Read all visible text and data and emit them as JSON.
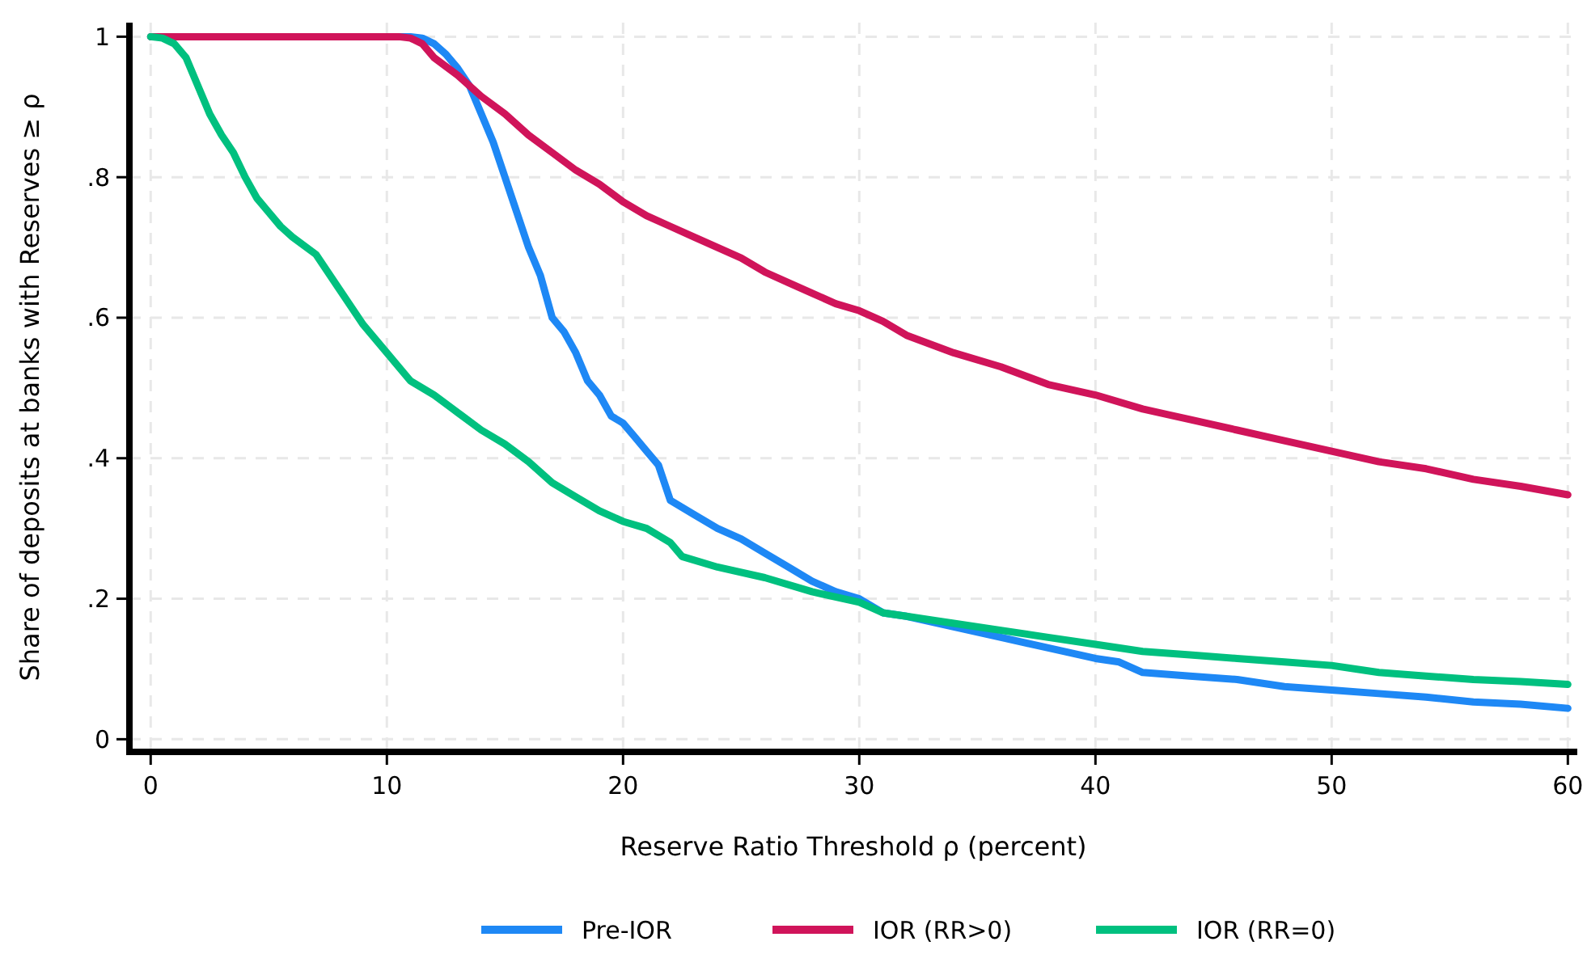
{
  "chart_data": {
    "type": "line",
    "xlabel": "Reserve Ratio Threshold ρ (percent)",
    "ylabel": "Share of deposits at banks with Reserves ≥ ρ",
    "xlim": [
      -0.9,
      60.4
    ],
    "ylim": [
      -0.018,
      1.02
    ],
    "xticks": [
      0,
      10,
      20,
      30,
      40,
      50,
      60
    ],
    "yticks": [
      {
        "value": 0,
        "label": "0"
      },
      {
        "value": 0.2,
        "label": ".2"
      },
      {
        "value": 0.4,
        "label": ".4"
      },
      {
        "value": 0.6,
        "label": ".6"
      },
      {
        "value": 0.8,
        "label": ".8"
      },
      {
        "value": 1,
        "label": "1"
      }
    ],
    "grid": true,
    "legend": "bottom",
    "line_style": "solid",
    "marker": "none",
    "series": [
      {
        "name": "Pre-IOR",
        "color": "#1e88f5",
        "x": [
          0,
          11,
          11.5,
          12,
          12.5,
          13,
          13.5,
          14,
          14.5,
          15,
          15.5,
          16,
          16.5,
          17,
          17.5,
          18,
          18.5,
          19,
          19.5,
          20,
          20.5,
          21,
          21.5,
          22,
          23,
          24,
          25,
          26,
          27,
          28,
          29,
          30,
          31,
          32,
          34,
          36,
          38,
          40,
          41,
          42,
          44,
          46,
          48,
          50,
          52,
          54,
          56,
          58,
          60
        ],
        "values": [
          1,
          1,
          0.998,
          0.99,
          0.975,
          0.955,
          0.93,
          0.89,
          0.85,
          0.8,
          0.75,
          0.7,
          0.66,
          0.6,
          0.58,
          0.55,
          0.51,
          0.49,
          0.46,
          0.45,
          0.43,
          0.41,
          0.39,
          0.34,
          0.32,
          0.3,
          0.285,
          0.265,
          0.245,
          0.225,
          0.21,
          0.2,
          0.18,
          0.175,
          0.16,
          0.145,
          0.13,
          0.115,
          0.11,
          0.095,
          0.09,
          0.085,
          0.075,
          0.07,
          0.065,
          0.06,
          0.053,
          0.05,
          0.044
        ]
      },
      {
        "name": "IOR (RR>0)",
        "color": "#d0145a",
        "x": [
          0,
          10.5,
          11,
          11.5,
          12,
          13,
          14,
          15,
          16,
          17,
          18,
          19,
          20,
          21,
          22,
          23,
          24,
          25,
          26,
          27,
          28,
          29,
          30,
          31,
          32,
          34,
          36,
          38,
          40,
          42,
          44,
          46,
          48,
          50,
          52,
          54,
          56,
          58,
          60
        ],
        "values": [
          1,
          1,
          0.998,
          0.99,
          0.97,
          0.945,
          0.915,
          0.89,
          0.86,
          0.835,
          0.81,
          0.79,
          0.765,
          0.745,
          0.73,
          0.715,
          0.7,
          0.685,
          0.665,
          0.65,
          0.635,
          0.62,
          0.61,
          0.595,
          0.575,
          0.55,
          0.53,
          0.505,
          0.49,
          0.47,
          0.455,
          0.44,
          0.425,
          0.41,
          0.395,
          0.385,
          0.37,
          0.36,
          0.348
        ]
      },
      {
        "name": "IOR (RR=0)",
        "color": "#00c07f",
        "x": [
          0,
          0.5,
          1,
          1.5,
          2,
          2.5,
          3,
          3.5,
          4,
          4.5,
          5,
          5.5,
          6,
          7,
          8,
          9,
          10,
          11,
          12,
          13,
          14,
          15,
          16,
          17,
          18,
          19,
          20,
          21,
          22,
          22.5,
          24,
          26,
          28,
          30,
          31,
          32,
          34,
          36,
          38,
          40,
          42,
          44,
          46,
          48,
          50,
          52,
          54,
          56,
          58,
          60
        ],
        "values": [
          1,
          0.998,
          0.99,
          0.97,
          0.93,
          0.89,
          0.86,
          0.835,
          0.8,
          0.77,
          0.75,
          0.73,
          0.715,
          0.69,
          0.64,
          0.59,
          0.55,
          0.51,
          0.49,
          0.465,
          0.44,
          0.42,
          0.395,
          0.365,
          0.345,
          0.325,
          0.31,
          0.3,
          0.28,
          0.26,
          0.245,
          0.23,
          0.21,
          0.195,
          0.18,
          0.175,
          0.165,
          0.155,
          0.145,
          0.135,
          0.125,
          0.12,
          0.115,
          0.11,
          0.105,
          0.095,
          0.09,
          0.085,
          0.082,
          0.078
        ]
      }
    ]
  }
}
